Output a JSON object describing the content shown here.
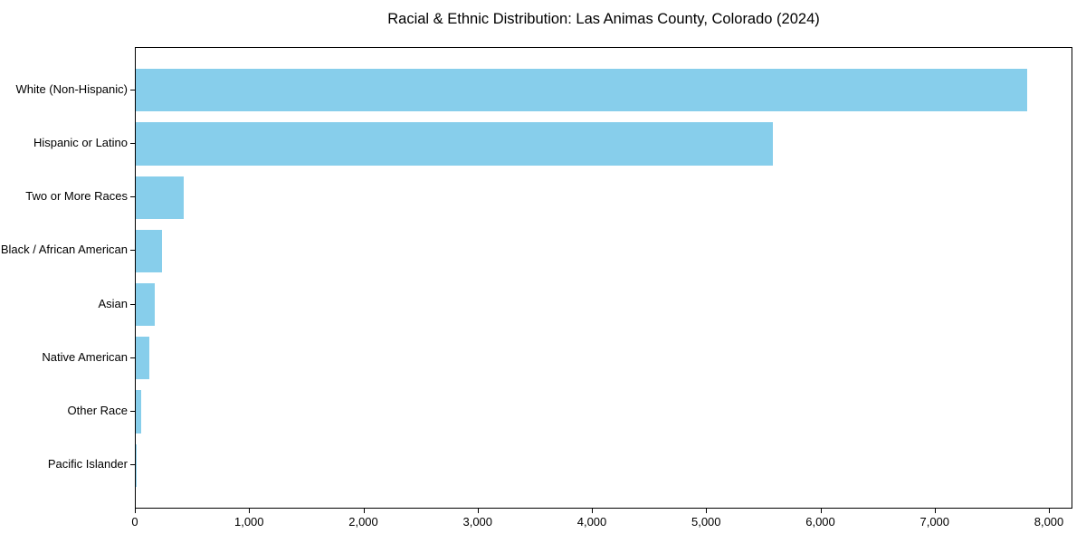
{
  "chart_data": {
    "type": "bar",
    "orientation": "horizontal",
    "title": "Racial & Ethnic Distribution: Las Animas County, Colorado (2024)",
    "categories": [
      "White (Non-Hispanic)",
      "Hispanic or Latino",
      "Two or More Races",
      "Black / African American",
      "Asian",
      "Native American",
      "Other Race",
      "Pacific Islander"
    ],
    "values": [
      7800,
      5580,
      420,
      230,
      170,
      120,
      50,
      5
    ],
    "xlabel": "",
    "ylabel": "",
    "xlim": [
      0,
      8190
    ],
    "xticks": [
      0,
      1000,
      2000,
      3000,
      4000,
      5000,
      6000,
      7000,
      8000
    ],
    "xtick_labels": [
      "0",
      "1,000",
      "2,000",
      "3,000",
      "4,000",
      "5,000",
      "6,000",
      "7,000",
      "8,000"
    ],
    "bar_color": "#87CEEB",
    "spine_color": "#000000",
    "background": "#FFFFFF",
    "grid": false,
    "legend": null
  }
}
